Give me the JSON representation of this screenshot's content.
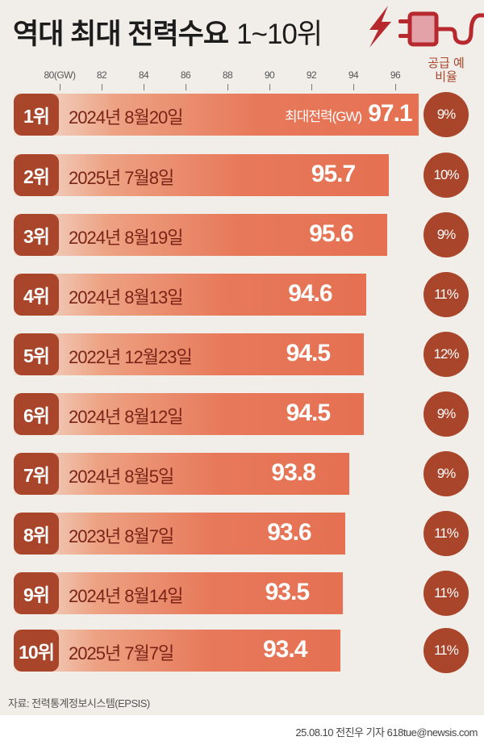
{
  "title": {
    "main": "역대 최대 전력수요",
    "range": "1~10위"
  },
  "icons": {
    "bolt": "lightning-bolt-icon",
    "plug": "power-plug-icon",
    "color": "#b8292f"
  },
  "chart_data": {
    "type": "bar",
    "orientation": "horizontal",
    "xlim": [
      80,
      97.1
    ],
    "ticks": [
      "80(GW)",
      "82",
      "84",
      "86",
      "88",
      "90",
      "92",
      "94",
      "96"
    ],
    "tick_values": [
      80,
      82,
      84,
      86,
      88,
      90,
      92,
      94,
      96
    ],
    "value_label": "최대전력(GW)",
    "reserve_header": "공급 예비율",
    "ranks": [
      "1위",
      "2위",
      "3위",
      "4위",
      "5위",
      "6위",
      "7위",
      "8위",
      "9위",
      "10위"
    ],
    "categories": [
      "2024년 8월20일",
      "2025년 7월8일",
      "2024년 8월19일",
      "2024년 8월13일",
      "2022년 12월23일",
      "2024년 8월12일",
      "2024년 8월5일",
      "2023년 8월7일",
      "2024년 8월14일",
      "2025년 7월7일"
    ],
    "values": [
      97.1,
      95.7,
      95.6,
      94.6,
      94.5,
      94.5,
      93.8,
      93.6,
      93.5,
      93.4
    ],
    "value_labels": [
      "97.1",
      "95.7",
      "95.6",
      "94.6",
      "94.5",
      "94.5",
      "93.8",
      "93.6",
      "93.5",
      "93.4"
    ],
    "reserve": [
      "9%",
      "10%",
      "9%",
      "11%",
      "12%",
      "9%",
      "9%",
      "11%",
      "11%",
      "11%"
    ],
    "colors": {
      "badge": "#a8452a",
      "bar": "#e57052",
      "date_text": "#7a2418"
    }
  },
  "footer": {
    "source": "자료: 전력통계정보시스템(EPSIS)",
    "credit": "25.08.10 전진우 기자 618tue@newsis.com"
  }
}
